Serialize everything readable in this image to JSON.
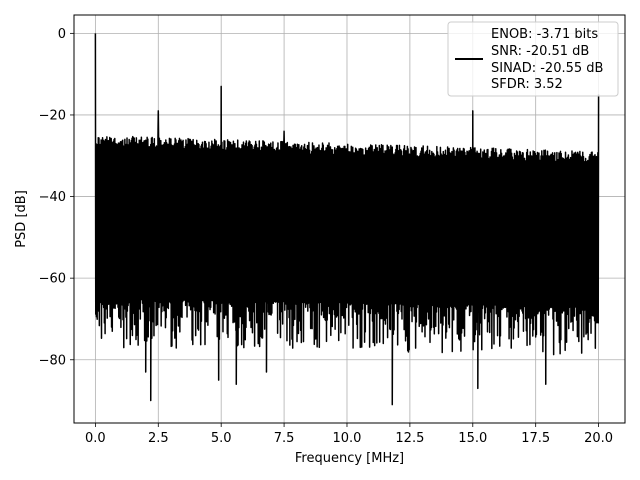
{
  "chart_data": {
    "type": "line",
    "title": "",
    "xlabel": "Frequency [MHz]",
    "ylabel": "PSD [dB]",
    "xlim": [
      -0.85,
      21.05
    ],
    "ylim": [
      -95.5,
      4.5
    ],
    "xticks": [
      0.0,
      2.5,
      5.0,
      7.5,
      10.0,
      12.5,
      15.0,
      17.5,
      20.0
    ],
    "xtick_labels": [
      "0.0",
      "2.5",
      "5.0",
      "7.5",
      "10.0",
      "12.5",
      "15.0",
      "17.5",
      "20.0"
    ],
    "yticks": [
      0,
      -20,
      -40,
      -60,
      -80
    ],
    "ytick_labels": [
      "0",
      "−20",
      "−40",
      "−60",
      "−80"
    ],
    "grid": true,
    "legend_position": "top-right",
    "series": [
      {
        "name": "ENOB: -3.71 bits\nSNR: -20.51 dB\nSINAD: -20.55 dB\nSFDR: 3.52",
        "color": "#000000",
        "x_range": [
          0.0,
          20.0
        ],
        "noise_upper_start": -25,
        "noise_upper_end": -29,
        "noise_lower_start": -65,
        "noise_lower_end": -67,
        "peaks": [
          {
            "x": 0.0,
            "y": 0
          },
          {
            "x": 2.5,
            "y": -19
          },
          {
            "x": 5.0,
            "y": -13
          },
          {
            "x": 7.5,
            "y": -24
          },
          {
            "x": 15.0,
            "y": -19
          },
          {
            "x": 20.0,
            "y": -15
          }
        ],
        "dips": [
          {
            "x": 2.2,
            "y": -90
          },
          {
            "x": 2.0,
            "y": -83
          },
          {
            "x": 4.9,
            "y": -85
          },
          {
            "x": 5.6,
            "y": -86
          },
          {
            "x": 6.8,
            "y": -83
          },
          {
            "x": 11.8,
            "y": -91
          },
          {
            "x": 15.2,
            "y": -87
          },
          {
            "x": 17.9,
            "y": -86
          }
        ]
      }
    ]
  },
  "legend": {
    "lines": [
      "ENOB: -3.71 bits",
      "SNR: -20.51 dB",
      "SINAD: -20.55 dB",
      "SFDR: 3.52"
    ]
  }
}
